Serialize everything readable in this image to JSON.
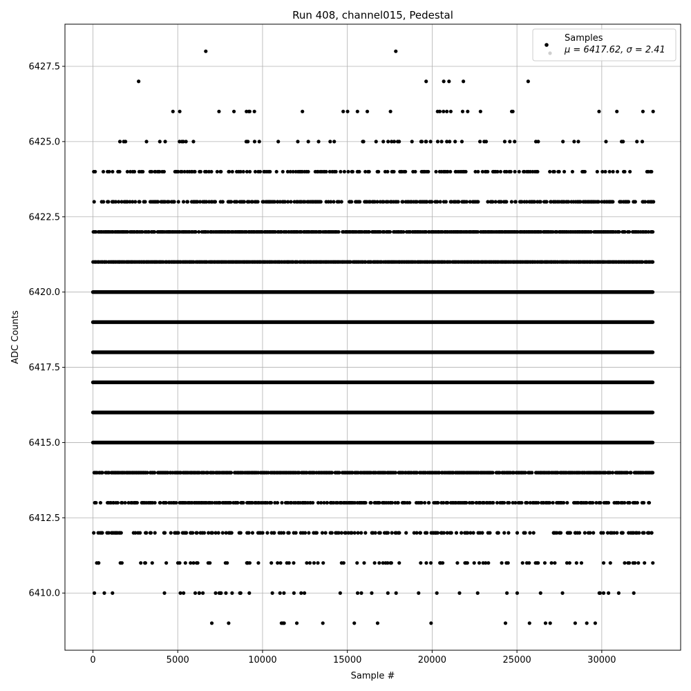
{
  "chart_data": {
    "type": "scatter",
    "title": "Run 408, channel015, Pedestal",
    "xlabel": "Sample #",
    "ylabel": "ADC Counts",
    "xlim": [
      -1650,
      34650
    ],
    "ylim": [
      6408.1,
      6428.9
    ],
    "x_ticks": [
      0,
      5000,
      10000,
      15000,
      20000,
      25000,
      30000
    ],
    "y_ticks": [
      6410.0,
      6412.5,
      6415.0,
      6417.5,
      6420.0,
      6422.5,
      6425.0,
      6427.5
    ],
    "grid": true,
    "legend_position": "upper right",
    "legend": {
      "samples_label": "Samples",
      "stats_prefix": "μ = 6417.62, ",
      "stats_sigma": "σ = 2.41"
    },
    "series": [
      {
        "name": "Samples",
        "color": "#000000",
        "x_range": [
          0,
          33000
        ],
        "levels": [
          {
            "y": 6409,
            "density": 0.02
          },
          {
            "y": 6410,
            "density": 0.08
          },
          {
            "y": 6411,
            "density": 0.14
          },
          {
            "y": 6412,
            "density": 0.32
          },
          {
            "y": 6413,
            "density": 0.55
          },
          {
            "y": 6414,
            "density": 0.8
          },
          {
            "y": 6415,
            "density": 1.0
          },
          {
            "y": 6416,
            "density": 1.0
          },
          {
            "y": 6417,
            "density": 1.0
          },
          {
            "y": 6418,
            "density": 1.0
          },
          {
            "y": 6419,
            "density": 1.0
          },
          {
            "y": 6420,
            "density": 1.0
          },
          {
            "y": 6421,
            "density": 0.95
          },
          {
            "y": 6422,
            "density": 0.8
          },
          {
            "y": 6423,
            "density": 0.5
          },
          {
            "y": 6424,
            "density": 0.32
          },
          {
            "y": 6425,
            "density": 0.1
          },
          {
            "y": 6426,
            "density": 0.03
          },
          {
            "y": 6427,
            "density": 0.01
          },
          {
            "y": 6428,
            "density": 0.005
          }
        ],
        "mean": 6417.62,
        "std": 2.41
      }
    ]
  }
}
